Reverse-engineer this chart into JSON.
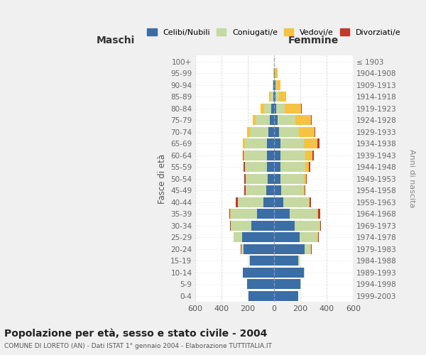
{
  "age_groups": [
    "0-4",
    "5-9",
    "10-14",
    "15-19",
    "20-24",
    "25-29",
    "30-34",
    "35-39",
    "40-44",
    "45-49",
    "50-54",
    "55-59",
    "60-64",
    "65-69",
    "70-74",
    "75-79",
    "80-84",
    "85-89",
    "90-94",
    "95-99",
    "100+"
  ],
  "birth_years": [
    "1999-2003",
    "1994-1998",
    "1989-1993",
    "1984-1988",
    "1979-1983",
    "1974-1978",
    "1969-1973",
    "1964-1968",
    "1959-1963",
    "1954-1958",
    "1949-1953",
    "1944-1948",
    "1939-1943",
    "1934-1938",
    "1929-1933",
    "1924-1928",
    "1919-1923",
    "1914-1918",
    "1909-1913",
    "1904-1908",
    "≤ 1903"
  ],
  "maschi": {
    "celibe": [
      195,
      205,
      235,
      185,
      230,
      240,
      175,
      130,
      80,
      60,
      50,
      55,
      55,
      55,
      45,
      30,
      20,
      8,
      4,
      2,
      1
    ],
    "coniugato": [
      0,
      0,
      2,
      5,
      20,
      65,
      155,
      200,
      195,
      155,
      165,
      165,
      170,
      165,
      140,
      110,
      55,
      18,
      5,
      1,
      0
    ],
    "vedovo": [
      0,
      0,
      0,
      0,
      0,
      1,
      1,
      2,
      2,
      3,
      2,
      3,
      5,
      15,
      20,
      20,
      25,
      10,
      3,
      0,
      0
    ],
    "divorziato": [
      0,
      0,
      0,
      0,
      2,
      3,
      5,
      8,
      15,
      8,
      10,
      8,
      5,
      0,
      0,
      0,
      0,
      0,
      0,
      0,
      0
    ]
  },
  "femmine": {
    "nubile": [
      185,
      200,
      225,
      185,
      230,
      195,
      155,
      120,
      70,
      55,
      50,
      50,
      50,
      50,
      35,
      25,
      18,
      12,
      8,
      5,
      1
    ],
    "coniugata": [
      0,
      2,
      5,
      10,
      50,
      135,
      190,
      210,
      195,
      165,
      175,
      185,
      185,
      175,
      155,
      135,
      65,
      25,
      8,
      2,
      0
    ],
    "vedova": [
      0,
      0,
      0,
      0,
      1,
      2,
      3,
      5,
      5,
      12,
      15,
      30,
      55,
      105,
      115,
      120,
      120,
      55,
      35,
      20,
      0
    ],
    "divorziata": [
      0,
      0,
      0,
      0,
      3,
      5,
      8,
      15,
      10,
      5,
      10,
      10,
      10,
      12,
      5,
      5,
      5,
      2,
      0,
      0,
      0
    ]
  },
  "colors": {
    "celibe": "#3a6ea5",
    "coniugato": "#c5d9a0",
    "vedovo": "#f5c242",
    "divorziato": "#c0392b"
  },
  "title": "Popolazione per età, sesso e stato civile - 2004",
  "subtitle": "COMUNE DI LORETO (AN) - Dati ISTAT 1° gennaio 2004 - Elaborazione TUTTITALIA.IT",
  "ylabel": "Fasce di età",
  "ylabel_right": "Anni di nascita",
  "xlim": 600,
  "legend_labels": [
    "Celibi/Nubili",
    "Coniugati/e",
    "Vedovi/e",
    "Divorziati/e"
  ],
  "maschi_label": "Maschi",
  "femmine_label": "Femmine",
  "bg_color": "#f0f0f0",
  "plot_bg_color": "#ffffff",
  "grid_color": "#cccccc"
}
